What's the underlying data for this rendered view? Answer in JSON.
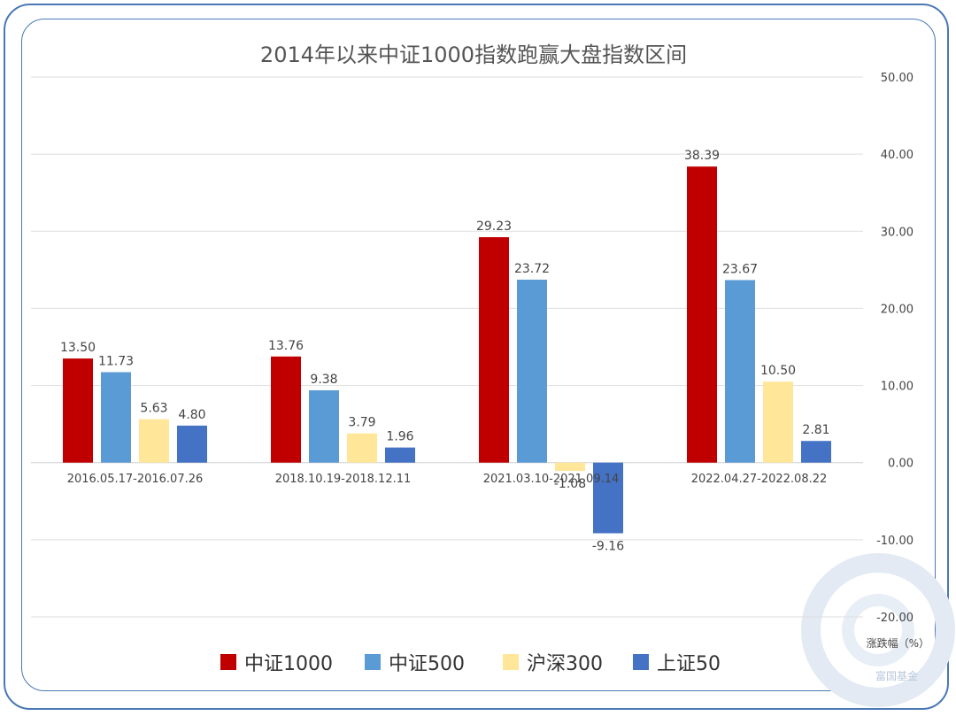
{
  "chart_data": {
    "type": "bar",
    "title": "2014年以来中证1000指数跑赢大盘指数区间",
    "categories": [
      "2016.05.17-2016.07.26",
      "2018.10.19-2018.12.11",
      "2021.03.10-2021.09.14",
      "2022.04.27-2022.08.22"
    ],
    "series": [
      {
        "name": "中证1000",
        "color": "#c00000",
        "values": [
          13.5,
          13.76,
          29.23,
          38.39
        ]
      },
      {
        "name": "中证500",
        "color": "#5b9bd5",
        "values": [
          11.73,
          9.38,
          23.72,
          23.67
        ]
      },
      {
        "name": "沪深300",
        "color": "#ffe699",
        "values": [
          5.63,
          3.79,
          -1.08,
          10.5
        ]
      },
      {
        "name": "上证50",
        "color": "#4472c4",
        "values": [
          4.8,
          1.96,
          -9.16,
          2.81
        ]
      }
    ],
    "ylabel": "涨跌幅（%）",
    "ylim": [
      -20,
      50
    ],
    "yticks": [
      "50.00",
      "40.00",
      "30.00",
      "20.00",
      "10.00",
      "0.00",
      "-10.00",
      "-20.00"
    ],
    "value_labels": [
      [
        "13.50",
        "13.76",
        "29.23",
        "38.39"
      ],
      [
        "11.73",
        "9.38",
        "23.72",
        "23.67"
      ],
      [
        "5.63",
        "3.79",
        "-1.08",
        "10.50"
      ],
      [
        "4.80",
        "1.96",
        "-9.16",
        "2.81"
      ]
    ],
    "y_axis_position": "right",
    "grid": true,
    "legend": "bottom"
  },
  "watermark": {
    "text": "富国基金"
  }
}
